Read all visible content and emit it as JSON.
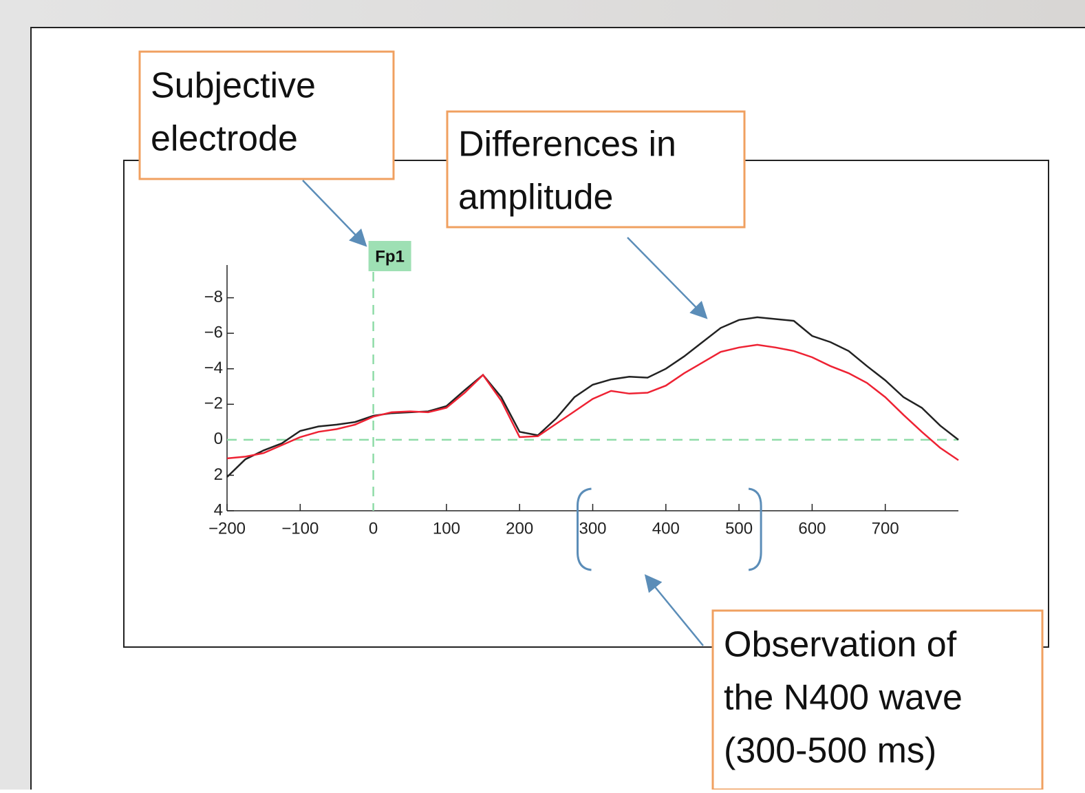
{
  "chart_data": {
    "type": "line",
    "x": [
      -200,
      -175,
      -150,
      -125,
      -100,
      -75,
      -50,
      -25,
      0,
      25,
      50,
      75,
      100,
      125,
      150,
      175,
      200,
      225,
      250,
      275,
      300,
      325,
      350,
      375,
      400,
      425,
      450,
      475,
      500,
      525,
      550,
      575,
      600,
      625,
      650,
      675,
      700,
      725,
      750,
      775,
      800
    ],
    "series": [
      {
        "color": "#222222",
        "values": [
          2.1,
          1.1,
          0.6,
          0.2,
          -0.5,
          -0.75,
          -0.85,
          -1.0,
          -1.35,
          -1.5,
          -1.55,
          -1.6,
          -1.9,
          -2.8,
          -3.65,
          -2.4,
          -0.45,
          -0.25,
          -1.2,
          -2.4,
          -3.1,
          -3.4,
          -3.55,
          -3.5,
          -4.0,
          -4.7,
          -5.5,
          -6.3,
          -6.75,
          -6.9,
          -6.8,
          -6.7,
          -5.85,
          -5.5,
          -5.0,
          -4.15,
          -3.35,
          -2.4,
          -1.8,
          -0.8,
          0
        ]
      },
      {
        "color": "#ee2233",
        "values": [
          1.05,
          0.95,
          0.75,
          0.3,
          -0.15,
          -0.45,
          -0.6,
          -0.85,
          -1.3,
          -1.55,
          -1.6,
          -1.55,
          -1.8,
          -2.65,
          -3.65,
          -2.2,
          -0.15,
          -0.2,
          -0.9,
          -1.6,
          -2.3,
          -2.75,
          -2.6,
          -2.65,
          -3.05,
          -3.75,
          -4.35,
          -4.95,
          -5.2,
          -5.35,
          -5.2,
          -5.0,
          -4.65,
          -4.15,
          -3.75,
          -3.2,
          -2.4,
          -1.4,
          -0.45,
          0.45,
          1.15
        ]
      }
    ],
    "xlim": [
      -200,
      800
    ],
    "xticks": [
      {
        "value": -200,
        "label": "−200"
      },
      {
        "value": -100,
        "label": "−100"
      },
      0,
      100,
      200,
      300,
      400,
      500,
      600,
      700
    ],
    "ylim": [
      4,
      -10
    ],
    "yticks": [
      {
        "value": -8,
        "label": "−8"
      },
      {
        "value": -6,
        "label": "−6"
      },
      {
        "value": -4,
        "label": "−4"
      },
      {
        "value": -2,
        "label": "−2"
      },
      0,
      2,
      4
    ],
    "channel_label": "Fp1",
    "annotations": [
      [
        "Subjective",
        "electrode"
      ],
      [
        "Differences in",
        "amplitude"
      ],
      [
        "Observation of",
        "the N400 wave",
        "(300-500 ms)"
      ]
    ]
  }
}
